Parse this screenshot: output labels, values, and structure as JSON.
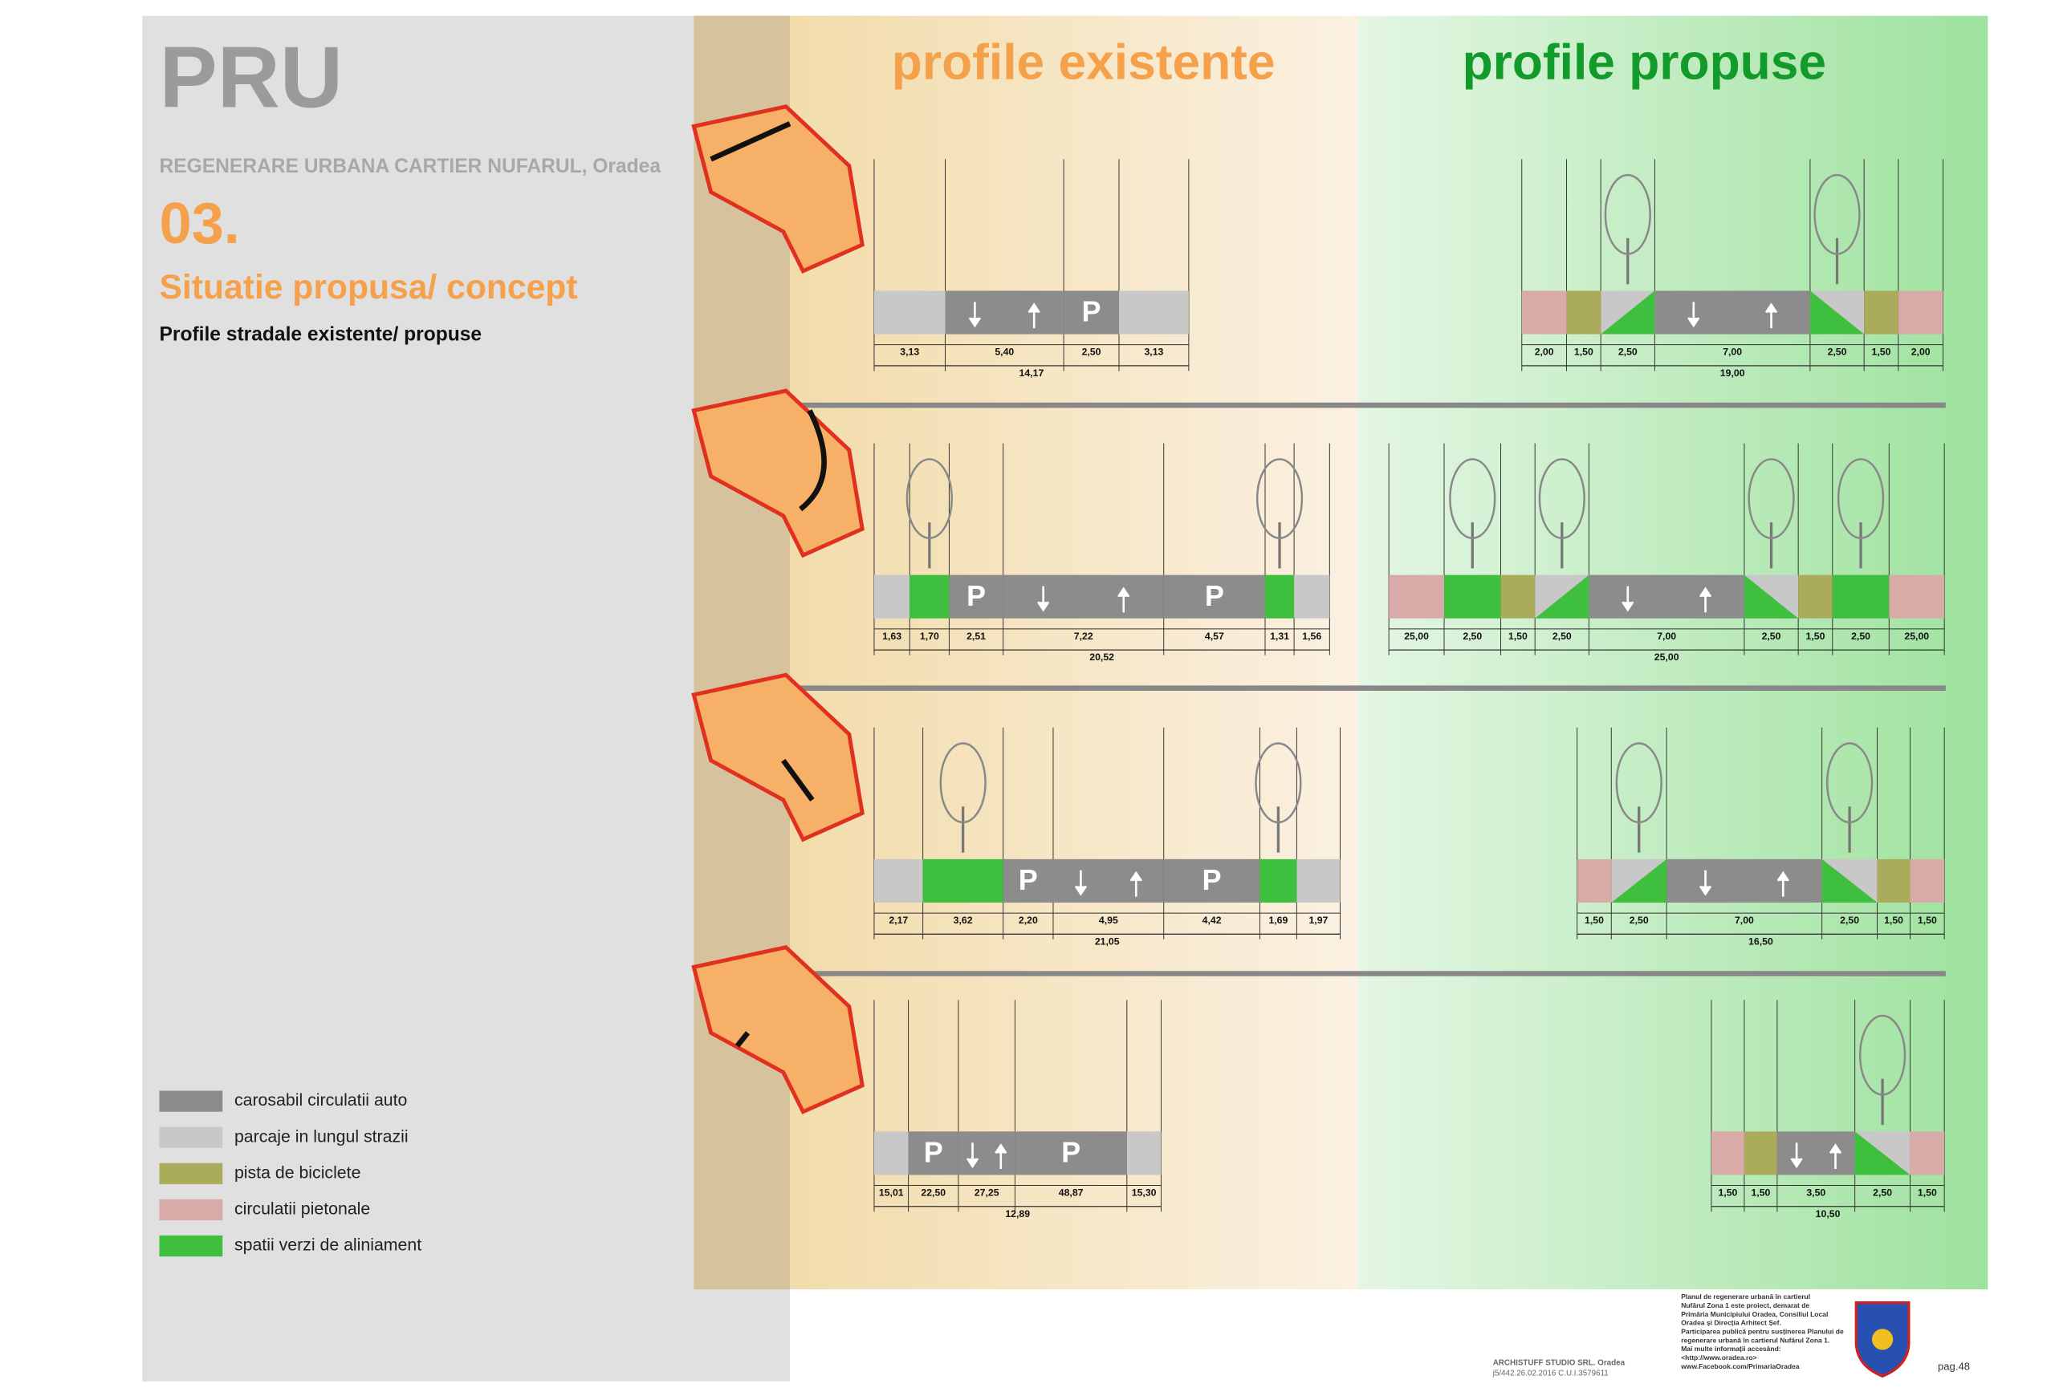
{
  "header": {
    "title": "PRU",
    "subtitle": "REGENERARE URBANA CARTIER NUFARUL, Oradea",
    "number": "03.",
    "section": "Situatie propusa/ concept",
    "caption": "Profile stradale existente/ propuse"
  },
  "columns": {
    "existing": "profile existente",
    "proposed": "profile propuse"
  },
  "parking_sign": "P",
  "profiles": [
    {
      "existing": {
        "segments": [
          "3,13",
          "5,40",
          "2,50",
          "3,13"
        ],
        "total": "14,17"
      },
      "proposed": {
        "segments": [
          "2,00",
          "1,50",
          "2,50",
          "7,00",
          "2,50",
          "1,50",
          "2,00"
        ],
        "total": "19,00"
      }
    },
    {
      "existing": {
        "segments": [
          "1,63",
          "1,70",
          "2,51",
          "7,22",
          "4,57",
          "1,31",
          "1,56"
        ],
        "total": "20,52"
      },
      "proposed": {
        "segments": [
          "25,00",
          "2,50",
          "1,50",
          "2,50",
          "7,00",
          "2,50",
          "1,50",
          "2,50",
          "25,00"
        ],
        "total": "25,00"
      }
    },
    {
      "existing": {
        "segments": [
          "2,17",
          "3,62",
          "2,20",
          "4,95",
          "4,42",
          "1,69",
          "1,97"
        ],
        "total": "21,05"
      },
      "proposed": {
        "segments": [
          "1,50",
          "2,50",
          "7,00",
          "2,50",
          "1,50",
          "1,50"
        ],
        "total": "16,50"
      }
    },
    {
      "existing": {
        "segments": [
          "15,01",
          "22,50",
          "27,25",
          "48,87",
          "15,30"
        ],
        "total": "12,89"
      },
      "proposed": {
        "segments": [
          "1,50",
          "1,50",
          "3,50",
          "2,50",
          "1,50"
        ],
        "total": "10,50"
      }
    }
  ],
  "legend": [
    {
      "label": "carosabil circulatii auto",
      "color": "#8c8c8c"
    },
    {
      "label": "parcaje in lungul strazii",
      "color": "#c8c8c8"
    },
    {
      "label": "pista de biciclete",
      "color": "#aaac5c"
    },
    {
      "label": "circulatii pietonale",
      "color": "#d8aaa8"
    },
    {
      "label": "spatii verzi de aliniament",
      "color": "#3ebf3e"
    }
  ],
  "footer": {
    "notice": [
      "Planul de regenerare urbană în cartierul",
      "Nufărul Zona 1 este proiect, demarat de",
      "Primăria Municipiului Oradea, Consiliul Local",
      "Oradea și Direcția Arhitect Șef.",
      "Participarea publică pentru susținerea Planului de",
      "regenerare urbană în cartierul Nufărul Zona 1.",
      "Mai multe informații accesând:",
      "<http://www.oradea.ro>",
      "www.Facebook.com/PrimariaOradea"
    ],
    "studio": "ARCHISTUFF STUDIO SRL. Oradea",
    "registration": "j5/442.26.02.2016 C.U.I.3579611",
    "page": "pag.48"
  }
}
